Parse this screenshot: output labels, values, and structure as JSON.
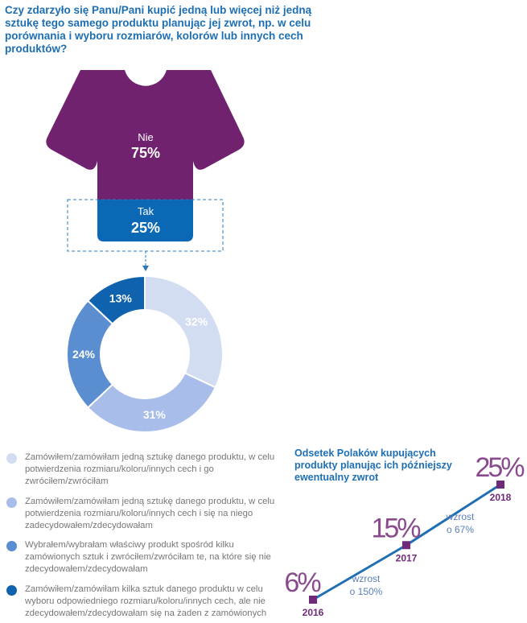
{
  "title": "Czy zdarzyło się Panu/Pani kupić jedną lub więcej niż jedną sztukę tego samego produktu planując jej zwrot, np. w celu porównania i wyboru rozmiarów, kolorów lub innych cech produktów?",
  "shirt": {
    "nie_label": "Nie",
    "nie_value": "75%",
    "tak_label": "Tak",
    "tak_value": "25%",
    "colors": {
      "nie": "#71226f",
      "tak": "#0b68b4"
    }
  },
  "chart_data": [
    {
      "type": "pie",
      "subtype": "donut",
      "title": "",
      "categories": [
        "Zamówiłem/zamówiłam jedną sztukę danego produktu, w celu potwierdzenia rozmiaru/koloru/innych cech i go zwróciłem/zwróciłam",
        "Zamówiłem/zamówiłam jedną sztukę danego produktu, w celu potwierdzenia rozmiaru/koloru/innych cech i się na niego zadecydowałem/zdecydowałam",
        "Wybrałem/wybrałam właściwy produkt spośród kilku zamówionych sztuk i zwróciłem/zwróciłam te, na które się nie zdecydowałem/zdecydowałam",
        "Zamówiłem/zamówiłam kilka sztuk danego produktu w celu wyboru odpowiedniego rozmiaru/koloru/innych cech, ale nie zdecydowałem/zdecydowałam się na żaden z zamówionych"
      ],
      "values": [
        32,
        31,
        24,
        13
      ],
      "labels": [
        "32%",
        "31%",
        "24%",
        "13%"
      ],
      "colors": [
        "#d3ddf2",
        "#a8bde9",
        "#5a8ed0",
        "#0f62ad"
      ],
      "legend": "bottom-left"
    },
    {
      "type": "line",
      "title": "Odsetek Polaków kupujących produkty planując ich późniejszy ewentualny zwrot",
      "x": [
        "2016",
        "2017",
        "2018"
      ],
      "y": [
        6,
        15,
        25
      ],
      "labels": [
        "6%",
        "15%",
        "25%"
      ],
      "annotations": [
        {
          "line1": "wzrost",
          "line2": "o 150%"
        },
        {
          "line1": "wzrost",
          "line2": "o 67%"
        }
      ],
      "ylim": [
        0,
        30
      ],
      "line_color": "#1f6fb2",
      "marker_color": "#6f2a7a"
    }
  ]
}
